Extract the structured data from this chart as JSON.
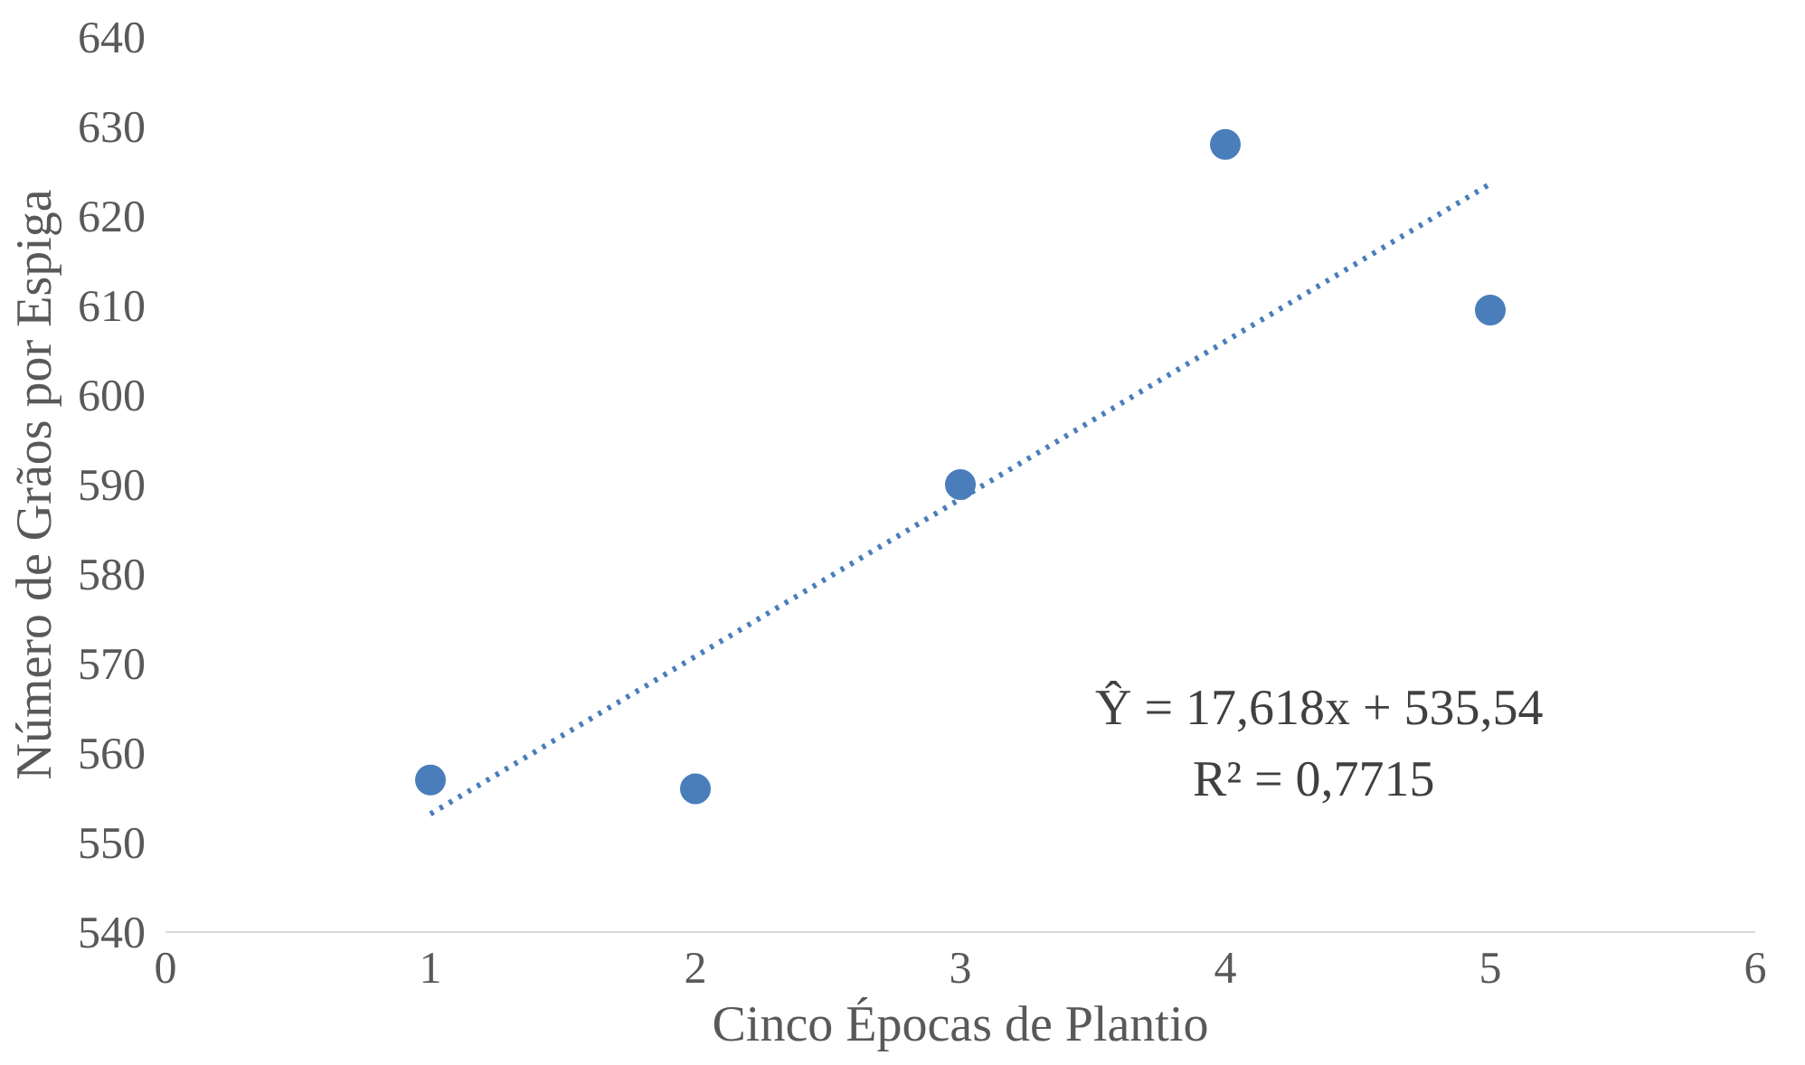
{
  "chart_data": {
    "type": "scatter",
    "xlabel": "Cinco Épocas de Plantio",
    "ylabel": "Número de Grãos por Espiga",
    "xlim": [
      0,
      6
    ],
    "xticks": [
      0,
      1,
      2,
      3,
      4,
      5,
      6
    ],
    "ylim": [
      540,
      640
    ],
    "yticks": [
      540,
      550,
      560,
      570,
      580,
      590,
      600,
      610,
      620,
      630,
      640
    ],
    "grid": false,
    "marker": "circle",
    "series": [
      {
        "color": "#4a7ebb",
        "x": [
          1,
          2,
          3,
          4,
          5
        ],
        "values": [
          557,
          556,
          590,
          628,
          609.5
        ]
      },
      {
        "type": "line",
        "color": "#4a7ebb",
        "line_style": "dotted",
        "marker": "none",
        "x": [
          1,
          5
        ],
        "values": [
          553.2,
          623.6
        ]
      }
    ],
    "annotations": [
      "Ŷ = 17,618x + 535,54",
      "R² = 0,7715"
    ]
  }
}
